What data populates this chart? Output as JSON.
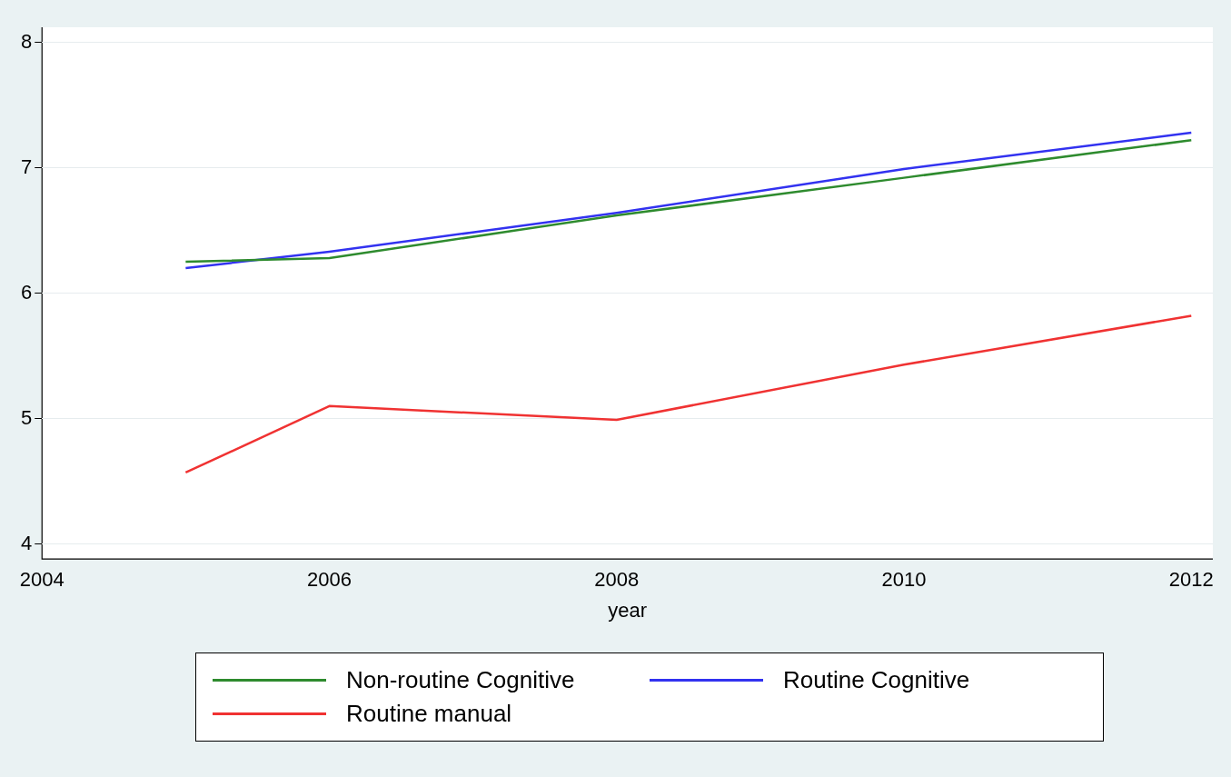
{
  "chart_data": {
    "type": "line",
    "xlabel": "year",
    "x": [
      2005,
      2006,
      2008,
      2010,
      2012
    ],
    "xlim": [
      2004,
      2012.15
    ],
    "xticks": [
      2004,
      2006,
      2008,
      2010,
      2012
    ],
    "ylim": [
      3.88,
      8.12
    ],
    "yticks": [
      4,
      5,
      6,
      7,
      8
    ],
    "grid": "y",
    "legend": "bottom",
    "marker": "none",
    "line_style": "solid",
    "series": [
      {
        "name": "Non-routine Cognitive",
        "color": "#2e8b2e",
        "values": [
          6.25,
          6.28,
          6.62,
          6.92,
          7.22
        ]
      },
      {
        "name": "Routine Cognitive",
        "color": "#3232f0",
        "values": [
          6.2,
          6.33,
          6.64,
          6.99,
          7.28
        ]
      },
      {
        "name": "Routine manual",
        "color": "#f03232",
        "values": [
          4.57,
          5.1,
          4.99,
          5.43,
          5.82
        ]
      }
    ]
  }
}
